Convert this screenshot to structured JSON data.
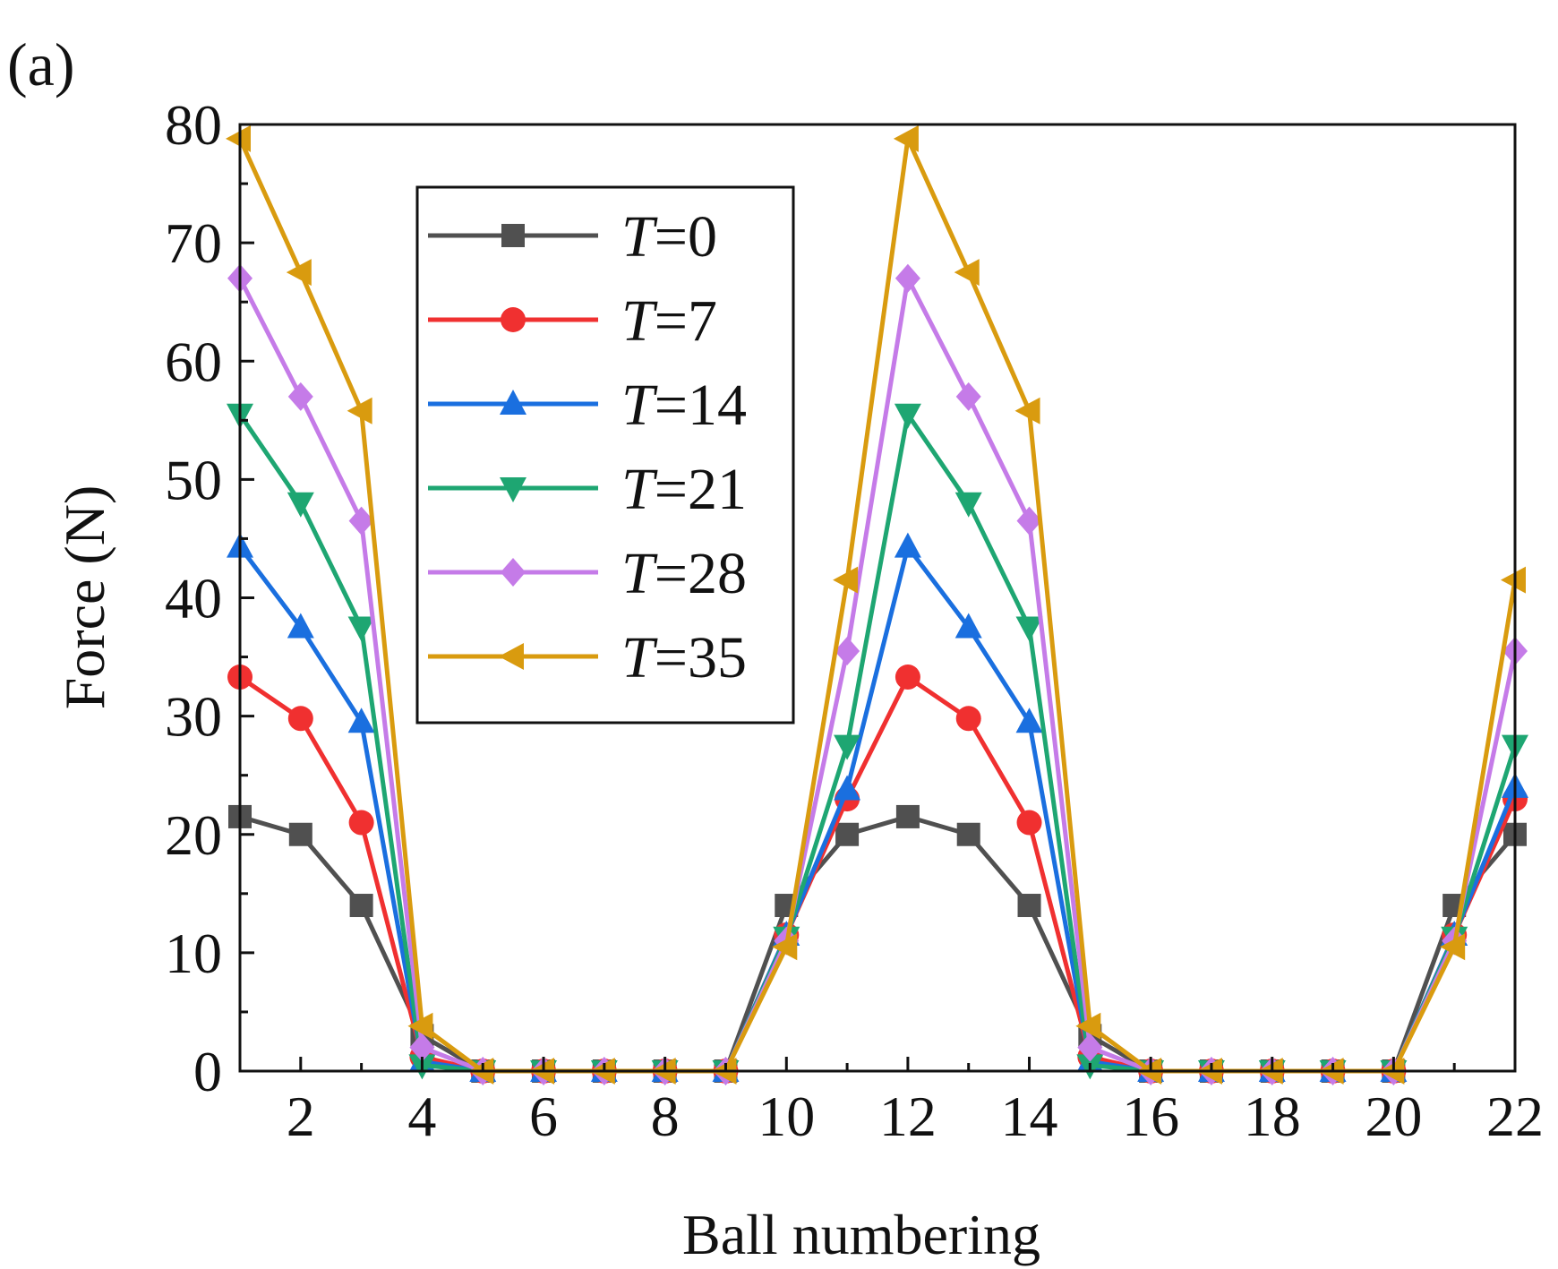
{
  "panel_label": "(a)",
  "chart_data": {
    "type": "line",
    "title": "",
    "xlabel": "Ball numbering",
    "ylabel": "Force (N)",
    "xlim": [
      1,
      22
    ],
    "ylim": [
      0,
      80
    ],
    "xticks": [
      2,
      4,
      6,
      8,
      10,
      12,
      14,
      16,
      18,
      20,
      22
    ],
    "yticks": [
      0,
      10,
      20,
      30,
      40,
      50,
      60,
      70,
      80
    ],
    "legend_position": "top-left",
    "x": [
      1,
      2,
      3,
      4,
      5,
      6,
      7,
      8,
      9,
      10,
      11,
      12,
      13,
      14,
      15,
      16,
      17,
      18,
      19,
      20,
      21,
      22
    ],
    "series": [
      {
        "name": "T=0",
        "prefix": "T",
        "suffix": "=0",
        "color": "#505050",
        "marker": "square",
        "values": [
          21.5,
          20,
          14,
          3,
          0,
          0,
          0,
          0,
          0,
          14,
          20,
          21.5,
          20,
          14,
          3,
          0,
          0,
          0,
          0,
          0,
          14,
          20
        ]
      },
      {
        "name": "T=7",
        "prefix": "T",
        "suffix": "=7",
        "color": "#f03030",
        "marker": "circle",
        "values": [
          33.3,
          29.8,
          21,
          1.2,
          0,
          0,
          0,
          0,
          0,
          11.5,
          23,
          33.3,
          29.8,
          21,
          1.2,
          0,
          0,
          0,
          0,
          0,
          11.5,
          23
        ]
      },
      {
        "name": "T=14",
        "prefix": "T",
        "suffix": "=14",
        "color": "#1a6fdf",
        "marker": "triangle-up",
        "values": [
          44.3,
          37.5,
          29.5,
          0.8,
          0,
          0,
          0,
          0,
          0,
          11.5,
          23.8,
          44.3,
          37.5,
          29.5,
          0.8,
          0,
          0,
          0,
          0,
          0,
          11.5,
          24
        ]
      },
      {
        "name": "T=21",
        "prefix": "T",
        "suffix": "=21",
        "color": "#1ea672",
        "marker": "triangle-down",
        "values": [
          55.5,
          48,
          37.5,
          0.5,
          0,
          0,
          0,
          0,
          0,
          11.3,
          27.5,
          55.5,
          48,
          37.5,
          0.5,
          0,
          0,
          0,
          0,
          0,
          11.3,
          27.5
        ]
      },
      {
        "name": "T=28",
        "prefix": "T",
        "suffix": "=28",
        "color": "#c57be8",
        "marker": "diamond",
        "values": [
          67,
          57,
          46.5,
          2,
          0,
          0,
          0,
          0,
          0,
          11,
          35.5,
          67,
          57,
          46.5,
          2,
          0,
          0,
          0,
          0,
          0,
          11,
          35.5
        ]
      },
      {
        "name": "T=35",
        "prefix": "T",
        "suffix": "=35",
        "color": "#d99b0f",
        "marker": "triangle-left",
        "values": [
          78.8,
          67.5,
          55.8,
          3.8,
          0,
          0,
          0,
          0,
          0,
          10.5,
          41.5,
          78.8,
          67.5,
          55.8,
          3.8,
          0,
          0,
          0,
          0,
          0,
          10.5,
          41.5
        ]
      }
    ]
  }
}
